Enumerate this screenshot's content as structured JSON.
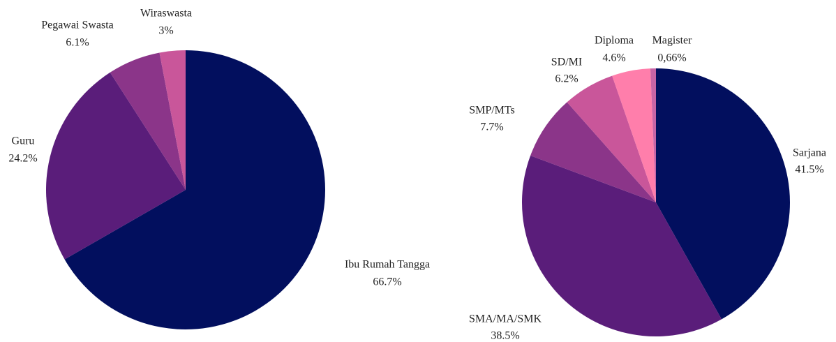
{
  "chart_data": [
    {
      "type": "pie",
      "categories": [
        "Ibu Rumah Tangga",
        "Guru",
        "Pegawai Swasta",
        "Wiraswasta"
      ],
      "values": [
        66.7,
        24.2,
        6.1,
        3
      ],
      "value_labels": [
        "66.7%",
        "24.2%",
        "6.1%",
        "3%"
      ],
      "colors": [
        "#020f5e",
        "#5a1d7a",
        "#8b3589",
        "#c9569a"
      ]
    },
    {
      "type": "pie",
      "categories": [
        "Sarjana",
        "SMA/MA/SMK",
        "SMP/MTs",
        "SD/MI",
        "Diploma",
        "Magister"
      ],
      "values": [
        41.5,
        38.5,
        7.7,
        6.2,
        4.6,
        0.66
      ],
      "value_labels": [
        "41.5%",
        "38.5%",
        "7.7%",
        "6.2%",
        "4.6%",
        "0,66%"
      ],
      "colors": [
        "#020f5e",
        "#5a1d7a",
        "#8b3589",
        "#c9569a",
        "#ff7eab",
        "#c765a6"
      ]
    }
  ]
}
